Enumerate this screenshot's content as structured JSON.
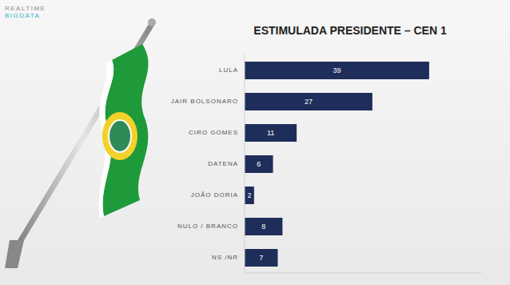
{
  "chart_data": {
    "type": "bar",
    "orientation": "horizontal",
    "title": "ESTIMULADA PRESIDENTE – CEN 1",
    "categories": [
      "LULA",
      "JAIR BOLSONARO",
      "CIRO GOMES",
      "DATENA",
      "JOÃO DORIA",
      "NULO / BRANCO",
      "NS /NR"
    ],
    "values": [
      39,
      27,
      11,
      6,
      2,
      8,
      7
    ],
    "color": "#1f2d5a",
    "xlim": [
      0,
      50
    ],
    "data_labels": true,
    "tick_labels": "y",
    "grid": false
  },
  "logo": [
    "REALTIME",
    "BIGDATA"
  ]
}
